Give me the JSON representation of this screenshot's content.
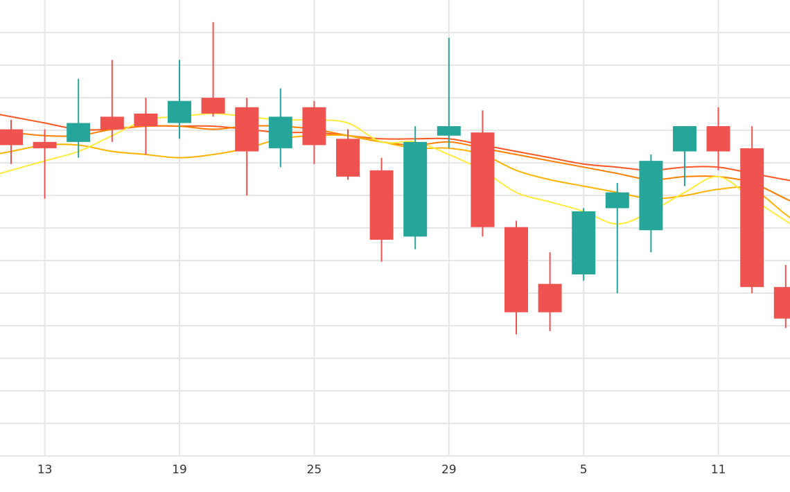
{
  "chart_data": {
    "type": "candlestick",
    "x_axis": {
      "tick_labels": [
        "13",
        "19",
        "25",
        "29",
        "5",
        "11"
      ],
      "tick_candle_index": [
        1,
        5,
        9,
        13,
        17,
        21
      ]
    },
    "y_range": [
      -5.2,
      9.3
    ],
    "grid": true,
    "colors": {
      "up": "#26a69a",
      "down": "#ef5350",
      "grid": "#e6e6e6",
      "ma_fast": "#ffeb3b",
      "ma_2": "#ffb300",
      "ma_3": "#ff7f00",
      "ma_4": "#ff5722"
    },
    "candles": [
      {
        "open": 5.2,
        "high": 5.5,
        "low": 4.1,
        "close": 4.7
      },
      {
        "open": 4.8,
        "high": 5.2,
        "low": 3.0,
        "close": 4.6
      },
      {
        "open": 4.8,
        "high": 6.8,
        "low": 4.3,
        "close": 5.4
      },
      {
        "open": 5.6,
        "high": 7.4,
        "low": 4.8,
        "close": 5.2
      },
      {
        "open": 5.7,
        "high": 6.2,
        "low": 4.4,
        "close": 5.3
      },
      {
        "open": 5.4,
        "high": 7.4,
        "low": 4.9,
        "close": 6.1
      },
      {
        "open": 6.2,
        "high": 8.6,
        "low": 5.6,
        "close": 5.7
      },
      {
        "open": 5.9,
        "high": 6.2,
        "low": 3.1,
        "close": 4.5
      },
      {
        "open": 4.6,
        "high": 6.5,
        "low": 4.0,
        "close": 5.6
      },
      {
        "open": 5.9,
        "high": 6.1,
        "low": 4.1,
        "close": 4.7
      },
      {
        "open": 4.9,
        "high": 5.2,
        "low": 3.6,
        "close": 3.7
      },
      {
        "open": 3.9,
        "high": 4.3,
        "low": 1.0,
        "close": 1.7
      },
      {
        "open": 1.8,
        "high": 5.3,
        "low": 1.4,
        "close": 4.8
      },
      {
        "open": 5.0,
        "high": 8.1,
        "low": 4.6,
        "close": 5.3
      },
      {
        "open": 5.1,
        "high": 5.8,
        "low": 1.8,
        "close": 2.1
      },
      {
        "open": 2.1,
        "high": 2.3,
        "low": -1.3,
        "close": -0.6
      },
      {
        "open": 0.3,
        "high": 1.3,
        "low": -1.2,
        "close": -0.6
      },
      {
        "open": 0.6,
        "high": 2.7,
        "low": 0.4,
        "close": 2.6
      },
      {
        "open": 2.7,
        "high": 3.5,
        "low": 0.0,
        "close": 3.2
      },
      {
        "open": 2.0,
        "high": 4.4,
        "low": 1.3,
        "close": 4.2
      },
      {
        "open": 4.5,
        "high": 5.3,
        "low": 3.4,
        "close": 5.3
      },
      {
        "open": 5.3,
        "high": 5.9,
        "low": 3.9,
        "close": 4.5
      },
      {
        "open": 4.6,
        "high": 5.3,
        "low": 0.0,
        "close": 0.2
      },
      {
        "open": 0.2,
        "high": 0.9,
        "low": -1.1,
        "close": -0.8
      }
    ],
    "moving_averages": [
      {
        "key": "ma_fast",
        "values": [
          3.9,
          4.2,
          4.5,
          5.0,
          5.5,
          5.6,
          5.7,
          5.6,
          5.5,
          5.5,
          5.4,
          4.8,
          4.8,
          4.4,
          3.9,
          3.2,
          2.9,
          2.6,
          2.2,
          2.6,
          3.2,
          3.7,
          3.0,
          2.3
        ]
      },
      {
        "key": "ma_2",
        "values": [
          4.5,
          4.7,
          4.7,
          4.5,
          4.4,
          4.3,
          4.4,
          4.6,
          4.9,
          5.0,
          5.0,
          4.8,
          4.6,
          4.6,
          4.4,
          3.9,
          3.6,
          3.4,
          3.2,
          3.0,
          3.1,
          3.3,
          3.3,
          2.5
        ]
      },
      {
        "key": "ma_3",
        "values": [
          5.1,
          5.0,
          5.0,
          5.2,
          5.3,
          5.3,
          5.2,
          5.3,
          5.3,
          5.2,
          5.0,
          4.8,
          4.7,
          4.8,
          4.6,
          4.4,
          4.2,
          4.0,
          3.8,
          3.6,
          3.7,
          3.7,
          3.5,
          3.0
        ]
      },
      {
        "key": "ma_4",
        "values": [
          5.6,
          5.4,
          5.2,
          5.2,
          5.3,
          5.3,
          5.3,
          5.2,
          5.1,
          5.1,
          5.0,
          4.9,
          4.9,
          4.9,
          4.7,
          4.5,
          4.3,
          4.1,
          4.0,
          3.9,
          4.0,
          4.0,
          3.8,
          3.6
        ]
      }
    ]
  }
}
